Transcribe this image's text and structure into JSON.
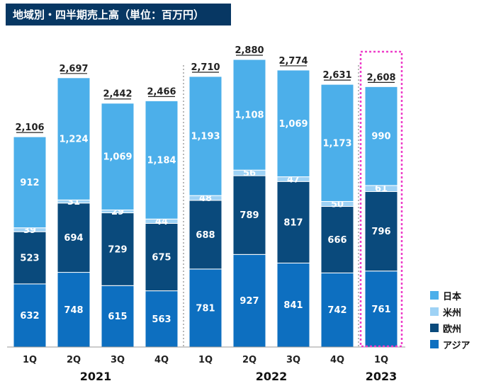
{
  "chart_data": {
    "type": "bar",
    "stacked": true,
    "title": "地域別・四半期売上高（単位：百万円）",
    "categories": [
      "1Q",
      "2Q",
      "3Q",
      "4Q",
      "1Q",
      "2Q",
      "3Q",
      "4Q",
      "1Q"
    ],
    "years": [
      {
        "label": "2021",
        "start": 0,
        "end": 3
      },
      {
        "label": "2022",
        "start": 4,
        "end": 7
      },
      {
        "label": "2023",
        "start": 8,
        "end": 8
      }
    ],
    "series": [
      {
        "name": "アジア",
        "color": "#0d6fc0",
        "values": [
          632,
          748,
          615,
          563,
          781,
          927,
          841,
          742,
          761
        ]
      },
      {
        "name": "欧州",
        "color": "#0a4a7c",
        "values": [
          523,
          694,
          729,
          675,
          688,
          789,
          817,
          666,
          796
        ]
      },
      {
        "name": "米州",
        "color": "#9ed2f5",
        "values": [
          39,
          31,
          29,
          44,
          48,
          56,
          47,
          50,
          61
        ]
      },
      {
        "name": "日本",
        "color": "#4cafea",
        "values": [
          912,
          1224,
          1069,
          1184,
          1193,
          1108,
          1069,
          1173,
          990
        ]
      }
    ],
    "totals": [
      "2,106",
      "2,697",
      "2,442",
      "2,466",
      "2,710",
      "2,880",
      "2,774",
      "2,631",
      "2,608"
    ],
    "legend_order": [
      "日本",
      "米州",
      "欧州",
      "アジア"
    ],
    "highlight_index": 8,
    "highlight_color": "#ee3ec9",
    "ylim": [
      0,
      2880
    ]
  }
}
